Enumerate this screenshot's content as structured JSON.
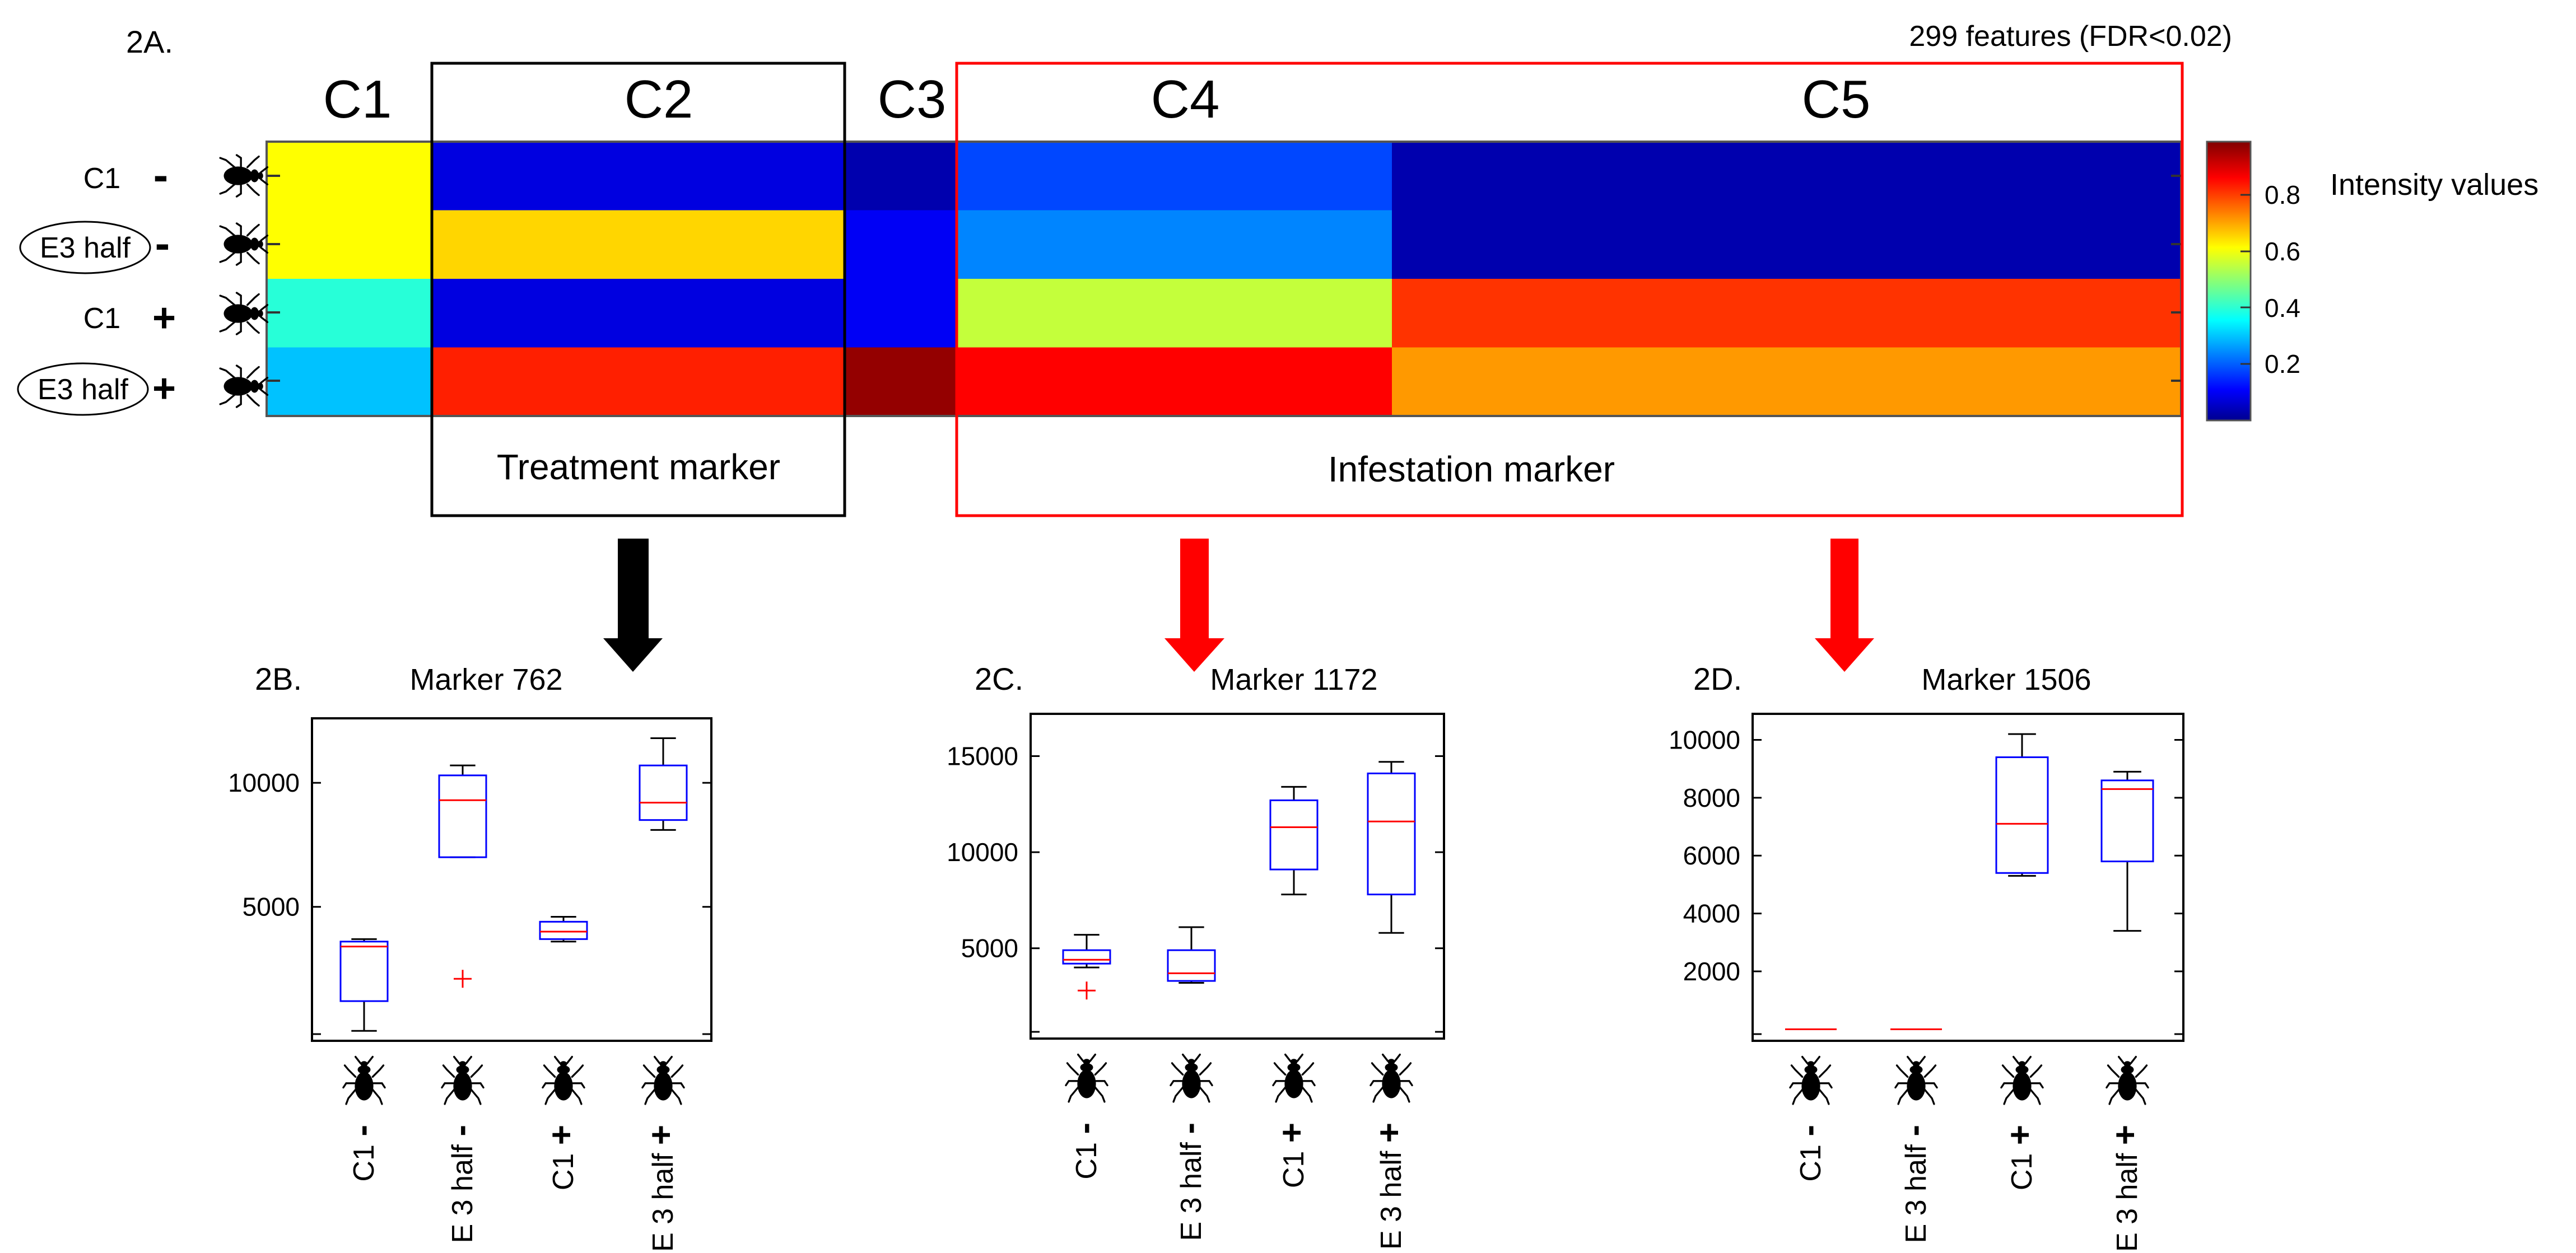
{
  "panel_labels": {
    "a": "2A.",
    "b": "2B.",
    "c": "2C.",
    "d": "2D."
  },
  "heatmap": {
    "feature_note": "299 features (FDR<0.02)",
    "clusters": [
      "C1",
      "C2",
      "C3",
      "C4",
      "C5"
    ],
    "rows": [
      {
        "label": "C1",
        "sign": "-",
        "circled": false
      },
      {
        "label": "E3 half",
        "sign": "-",
        "circled": false
      },
      {
        "label": "C1",
        "sign": "+",
        "circled": false
      },
      {
        "label": "E3 half",
        "sign": "+",
        "circled": false
      }
    ],
    "colorbar_title": "Intensity values",
    "colorbar_ticks": [
      "0.8",
      "0.6",
      "0.4",
      "0.2"
    ],
    "treatment_marker": "Treatment marker",
    "infestation_marker": "Infestation marker",
    "arrow_colors": {
      "treatment": "#000000",
      "infestation": "#ff0000"
    },
    "box_colors": {
      "treatment": "#000000",
      "infestation": "#ff0000"
    }
  },
  "chart_data": [
    {
      "type": "heatmap",
      "columns": [
        "C1",
        "C2",
        "C3",
        "C4",
        "C5"
      ],
      "rows": [
        "C1 -",
        "E3 half -",
        "C1 +",
        "E3 half +"
      ],
      "values": [
        [
          0.62,
          0.08,
          0.03,
          0.18,
          0.03
        ],
        [
          0.62,
          0.66,
          0.1,
          0.24,
          0.03
        ],
        [
          0.4,
          0.08,
          0.1,
          0.56,
          0.82
        ],
        [
          0.3,
          0.84,
          0.98,
          0.87,
          0.72
        ]
      ],
      "colorscale": "jet",
      "range": [
        0,
        1
      ]
    },
    {
      "type": "box",
      "title": "Marker 762",
      "categories": [
        "C1 -",
        "E 3 half -",
        "C1 +",
        "E 3 half +"
      ],
      "ylim": [
        -400,
        12600
      ],
      "yticks": [
        5000,
        10000
      ],
      "boxes": [
        {
          "min": 0,
          "q1": 1200,
          "median": 3400,
          "q3": 3600,
          "max": 3700,
          "outliers": []
        },
        {
          "min": 7000,
          "q1": 7000,
          "median": 9300,
          "q3": 10300,
          "max": 10700,
          "outliers": [
            2100
          ]
        },
        {
          "min": 3600,
          "q1": 3700,
          "median": 4000,
          "q3": 4400,
          "max": 4600,
          "outliers": []
        },
        {
          "min": 8100,
          "q1": 8500,
          "median": 9200,
          "q3": 10700,
          "max": 11800,
          "outliers": []
        }
      ]
    },
    {
      "type": "box",
      "title": "Marker 1172",
      "categories": [
        "C1 -",
        "E 3 half -",
        "C1 +",
        "E 3 half +"
      ],
      "ylim": [
        300,
        17200
      ],
      "yticks": [
        5000,
        10000,
        15000
      ],
      "boxes": [
        {
          "min": 4000,
          "q1": 4200,
          "median": 4400,
          "q3": 4900,
          "max": 5700,
          "outliers": [
            2800
          ]
        },
        {
          "min": 3200,
          "q1": 3300,
          "median": 3700,
          "q3": 4900,
          "max": 6100,
          "outliers": []
        },
        {
          "min": 7800,
          "q1": 9100,
          "median": 11300,
          "q3": 12700,
          "max": 13400,
          "outliers": []
        },
        {
          "min": 5800,
          "q1": 7800,
          "median": 11600,
          "q3": 14100,
          "max": 14700,
          "outliers": []
        }
      ]
    },
    {
      "type": "box",
      "title": "Marker 1506",
      "categories": [
        "C1 -",
        "E 3 half -",
        "C1 +",
        "E 3 half +"
      ],
      "ylim": [
        -400,
        10900
      ],
      "yticks": [
        2000,
        4000,
        6000,
        8000,
        10000
      ],
      "boxes": [
        {
          "min": 0,
          "q1": 0,
          "median": 0,
          "q3": 0,
          "max": 0,
          "outliers": []
        },
        {
          "min": 0,
          "q1": 0,
          "median": 0,
          "q3": 0,
          "max": 0,
          "outliers": []
        },
        {
          "min": 5300,
          "q1": 5400,
          "median": 7100,
          "q3": 9400,
          "max": 10200,
          "outliers": []
        },
        {
          "min": 3400,
          "q1": 5800,
          "median": 8300,
          "q3": 8600,
          "max": 8900,
          "outliers": []
        }
      ]
    }
  ]
}
